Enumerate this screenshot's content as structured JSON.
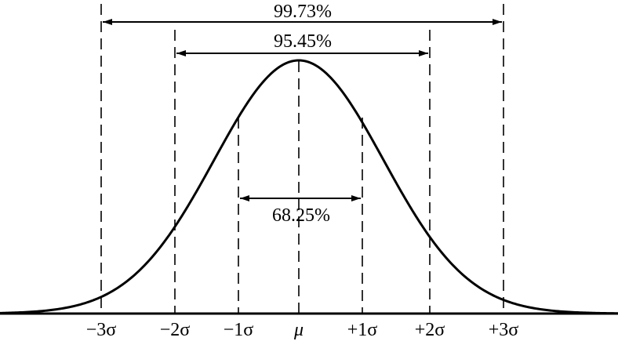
{
  "ranges": [
    {
      "label": "99.73%"
    },
    {
      "label": "95.45%"
    },
    {
      "label": "68.25%"
    }
  ],
  "axis_labels": [
    "−3σ",
    "−2σ",
    "−1σ",
    "μ",
    "+1σ",
    "+2σ",
    "+3σ"
  ]
}
